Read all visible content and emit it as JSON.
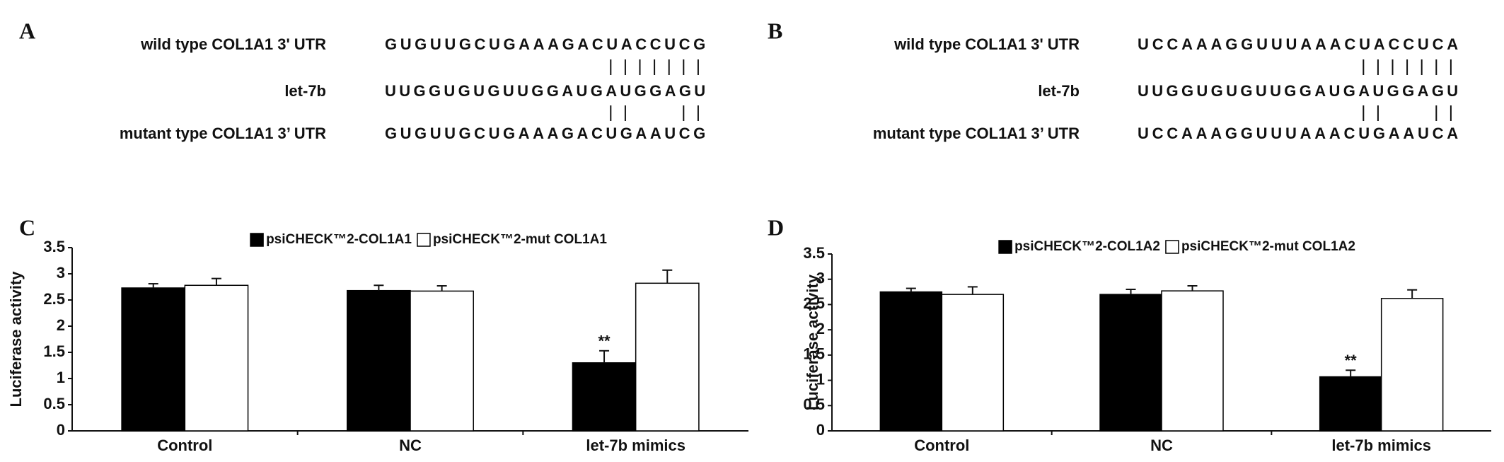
{
  "sequence_panels": [
    {
      "label": "A",
      "rows": [
        {
          "name": "wild type COL1A1 3' UTR",
          "sequence": "GUGUUGCUGAAAGACUACCUCG"
        },
        {
          "name": "let-7b",
          "sequence": "UUGGUGUGUUGGAUGAUGGAGU"
        },
        {
          "name": "mutant type COL1A1 3’ UTR",
          "sequence": "GUGUUGCUGAAAGACUGAAUCG"
        }
      ]
    },
    {
      "label": "B",
      "rows": [
        {
          "name": "wild type COL1A1 3' UTR",
          "sequence": "UCCAAAGGUUUAAACUACCUCA"
        },
        {
          "name": "let-7b",
          "sequence": "UUGGUGUGUUGGAUGAUGGAGU"
        },
        {
          "name": "mutant type COL1A1 3’ UTR",
          "sequence": "UCCAAAGGUUUAAACUGAAUCA"
        }
      ]
    }
  ],
  "chart_data": [
    {
      "type": "bar",
      "panel_label": "C",
      "y_label": "Luciferase activity",
      "categories": [
        "Control",
        "NC",
        "let-7b mimics"
      ],
      "series": [
        {
          "name": "psiCHECK™2-COL1A1",
          "color": "#000000",
          "values": [
            2.73,
            2.68,
            1.3
          ],
          "errors": [
            0.08,
            0.1,
            0.23
          ]
        },
        {
          "name": "psiCHECK™2-mut COL1A1",
          "color": "#ffffff",
          "values": [
            2.78,
            2.67,
            2.82
          ],
          "errors": [
            0.13,
            0.1,
            0.25
          ]
        }
      ],
      "annotations": [
        {
          "text": "**",
          "category": "let-7b mimics",
          "series": "psiCHECK™2-COL1A1"
        }
      ],
      "ylim": [
        0,
        3.5
      ],
      "yticks": [
        0,
        0.5,
        1,
        1.5,
        2,
        2.5,
        3,
        3.5
      ],
      "grid": false,
      "legend": "top"
    },
    {
      "type": "bar",
      "panel_label": "D",
      "y_label": "Luciferase activity",
      "categories": [
        "Control",
        "NC",
        "let-7b mimics"
      ],
      "series": [
        {
          "name": "psiCHECK™2-COL1A2",
          "color": "#000000",
          "values": [
            2.75,
            2.7,
            1.07
          ],
          "errors": [
            0.07,
            0.1,
            0.13
          ]
        },
        {
          "name": "psiCHECK™2-mut COL1A2",
          "color": "#ffffff",
          "values": [
            2.7,
            2.77,
            2.62
          ],
          "errors": [
            0.15,
            0.1,
            0.17
          ]
        }
      ],
      "annotations": [
        {
          "text": "**",
          "category": "let-7b mimics",
          "series": "psiCHECK™2-COL1A2"
        }
      ],
      "ylim": [
        0,
        3.5
      ],
      "yticks": [
        0,
        0.5,
        1,
        1.5,
        2,
        2.5,
        3,
        3.5
      ],
      "grid": false,
      "legend": "top"
    }
  ]
}
